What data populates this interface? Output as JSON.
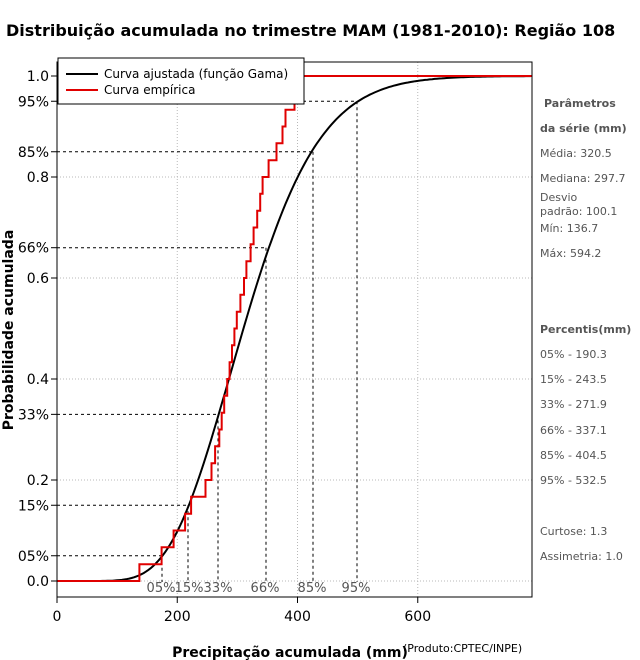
{
  "chart_data": {
    "type": "line",
    "title": "Distribuição acumulada no trimestre MAM (1981-2010): Região 108",
    "xlabel": "Precipitação acumulada (mm)",
    "ylabel": "Probabilidade acumulada",
    "xlim": [
      0,
      790
    ],
    "ylim": [
      -0.02,
      1.0
    ],
    "x_ticks": [
      {
        "value": 0,
        "label": "0"
      },
      {
        "value": 200,
        "label": "200"
      },
      {
        "value": 400,
        "label": "400"
      },
      {
        "value": 600,
        "label": "600"
      }
    ],
    "y_ticks": [
      {
        "value": 0.0,
        "label": "0.0"
      },
      {
        "value": 0.05,
        "label": "05%"
      },
      {
        "value": 0.15,
        "label": "15%"
      },
      {
        "value": 0.2,
        "label": "0.2"
      },
      {
        "value": 0.33,
        "label": "33%"
      },
      {
        "value": 0.4,
        "label": "0.4"
      },
      {
        "value": 0.6,
        "label": "0.6"
      },
      {
        "value": 0.66,
        "label": "66%"
      },
      {
        "value": 0.8,
        "label": "0.8"
      },
      {
        "value": 0.85,
        "label": "85%"
      },
      {
        "value": 0.95,
        "label": "95%"
      },
      {
        "value": 1.0,
        "label": "1.0"
      }
    ],
    "gamma_params": {
      "mean": 320.5,
      "sd": 100.1
    },
    "series": [
      {
        "name": "Curva ajustada (função Gama)",
        "color": "#000000",
        "kind": "gamma-cdf"
      },
      {
        "name": "Curva empírica",
        "color": "#e00000",
        "kind": "step",
        "x": [
          0,
          137,
          174,
          194,
          213,
          223,
          247,
          257,
          263,
          270,
          274,
          278,
          283,
          287,
          291,
          295,
          299,
          305,
          311,
          315,
          322,
          327,
          333,
          338,
          342,
          352,
          365,
          375,
          380,
          395,
          404,
          408,
          417,
          425,
          432,
          440,
          450,
          465,
          478,
          525,
          548,
          568,
          573,
          594,
          790
        ],
        "y": [
          0,
          0.033,
          0.067,
          0.1,
          0.133,
          0.167,
          0.2,
          0.233,
          0.267,
          0.3,
          0.333,
          0.367,
          0.4,
          0.433,
          0.467,
          0.5,
          0.533,
          0.567,
          0.6,
          0.633,
          0.667,
          0.7,
          0.733,
          0.767,
          0.8,
          0.833,
          0.867,
          0.9,
          0.933,
          0.967,
          1.0,
          1.0,
          1.0,
          1.0,
          1.0,
          1.0,
          1.0,
          1.0,
          1.0,
          1.0,
          1.0,
          1.0,
          1.0,
          1.0,
          1.0
        ]
      }
    ],
    "percentile_markers": [
      {
        "label": "05%",
        "prob": 0.05,
        "x": 190.3
      },
      {
        "label": "15%",
        "prob": 0.15,
        "x": 243.5
      },
      {
        "label": "33%",
        "prob": 0.33,
        "x": 271.9
      },
      {
        "label": "66%",
        "prob": 0.66,
        "x": 337.1
      },
      {
        "label": "85%",
        "prob": 0.85,
        "x": 404.5
      },
      {
        "label": "95%",
        "prob": 0.95,
        "x": 532.5
      }
    ],
    "legend_position": "top-left",
    "grid": true
  },
  "sidebar": {
    "params_title_1": "Parâmetros",
    "params_title_2": "da série (mm)",
    "media": "Média: 320.5",
    "mediana": "Mediana: 297.7",
    "desvio_1": "Desvio",
    "desvio_2": "padrão: 100.1",
    "min": "Mín: 136.7",
    "max": "Máx: 594.2",
    "percentis_title": "Percentis(mm)",
    "p05": "05% - 190.3",
    "p15": "15% - 243.5",
    "p33": "33% - 271.9",
    "p66": "66% - 337.1",
    "p85": "85% - 404.5",
    "p95": "95% - 532.5",
    "curtose": "Curtose: 1.3",
    "assimetria": "Assimetria: 1.0"
  },
  "credit": "(Produto:CPTEC/INPE)"
}
